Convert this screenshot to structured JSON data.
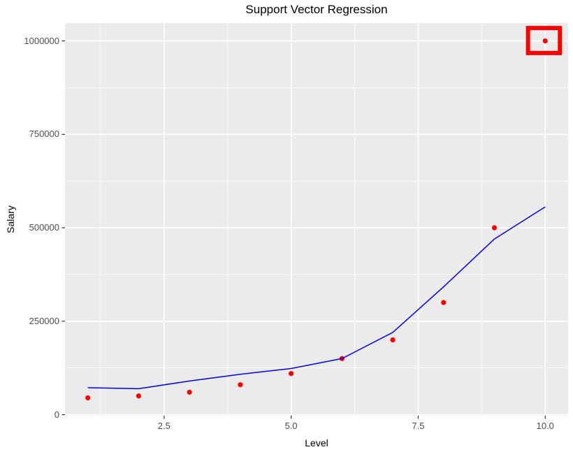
{
  "title": "Support Vector Regression",
  "x_axis": {
    "label": "Level",
    "tick_labels": [
      "2.5",
      "5.0",
      "7.5",
      "10.0"
    ],
    "tick_values": [
      2.5,
      5.0,
      7.5,
      10.0
    ],
    "minor_tick_values": [
      1.25,
      3.75,
      6.25,
      8.75
    ],
    "range": [
      0.55,
      10.45
    ]
  },
  "y_axis": {
    "label": "Salary",
    "tick_labels": [
      "0",
      "250000",
      "500000",
      "750000",
      "1000000"
    ],
    "tick_values": [
      0,
      250000,
      500000,
      750000,
      1000000
    ],
    "minor_tick_values": [
      125000,
      375000,
      625000,
      875000
    ],
    "range": [
      -2750,
      1047750
    ]
  },
  "chart_data": {
    "type": "scatter",
    "title": "Support Vector Regression",
    "xlabel": "Level",
    "ylabel": "Salary",
    "x": [
      1,
      2,
      3,
      4,
      5,
      6,
      7,
      8,
      9,
      10
    ],
    "series": [
      {
        "name": "actual-salary-points",
        "type": "scatter",
        "color": "#FF0000",
        "values": [
          45000,
          50000,
          60000,
          80000,
          110000,
          150000,
          200000,
          300000,
          500000,
          1000000
        ]
      },
      {
        "name": "svr-prediction-line",
        "type": "line",
        "color": "#0000FF",
        "values": [
          72000,
          69500,
          90000,
          108000,
          123500,
          150000,
          220000,
          342000,
          470000,
          556000
        ]
      }
    ],
    "annotations": [
      {
        "name": "outlier-highlight",
        "type": "rect",
        "color": "#FF0000",
        "stroke_width": 6,
        "x_range": [
          9.62,
          10.33
        ],
        "y_range": [
          962000,
          1040000
        ]
      }
    ],
    "xlim": [
      0.55,
      10.45
    ],
    "ylim": [
      -2750,
      1047750
    ],
    "grid": true,
    "legend": "none"
  },
  "colors": {
    "panel_background": "#EBEBEB",
    "grid": "#FFFFFF",
    "tick_mark": "#333333",
    "tick_text": "#4D4D4D",
    "point": "#FF0000",
    "line": "#0000FF",
    "annotation": "#FF0000",
    "title_text": "#000000"
  }
}
